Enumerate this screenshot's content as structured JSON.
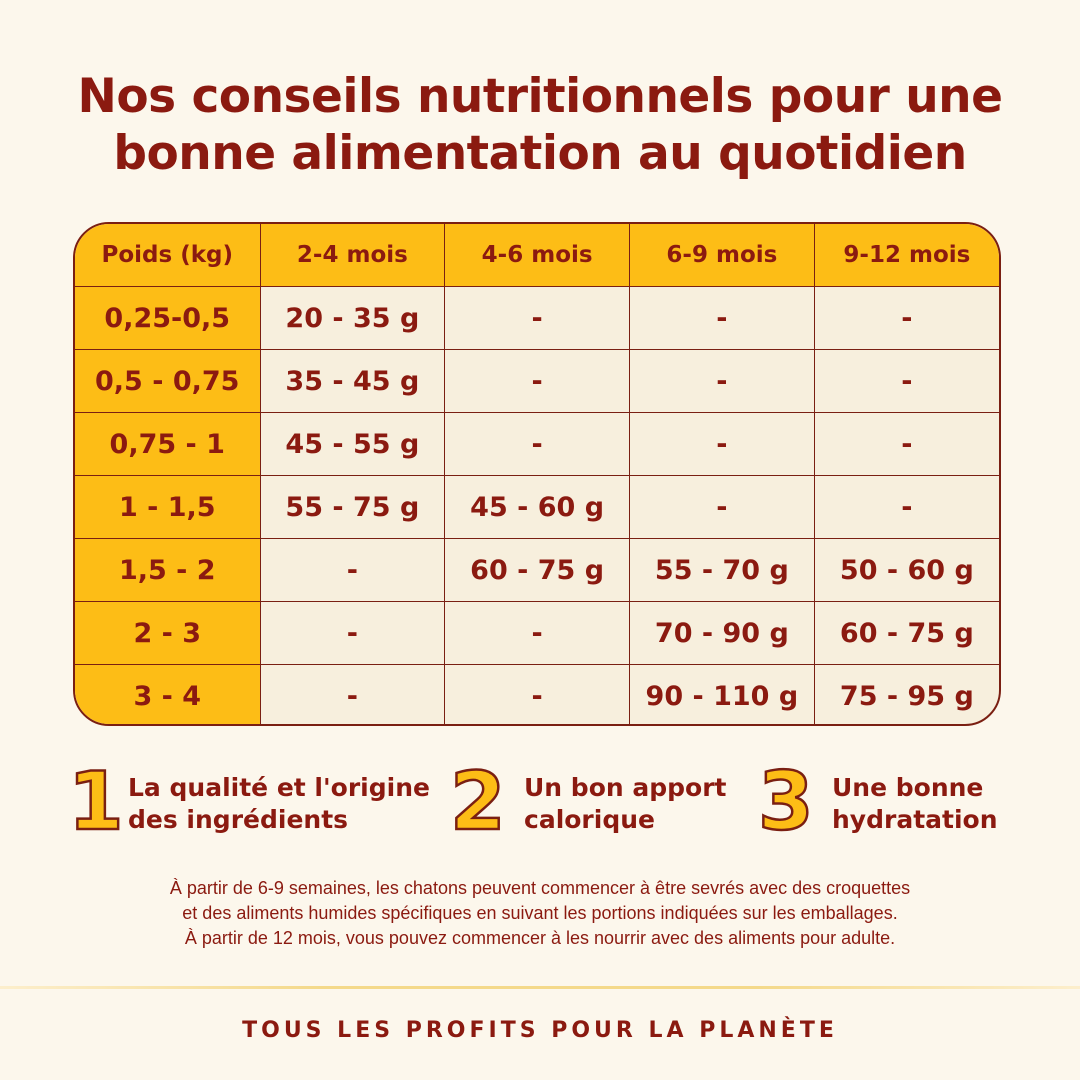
{
  "title": {
    "line1": "Nos conseils nutritionnels pour une",
    "line2": "bonne alimentation au quotidien"
  },
  "table": {
    "headers": [
      "Poids (kg)",
      "2-4 mois",
      "4-6 mois",
      "6-9 mois",
      "9-12 mois"
    ],
    "rows": [
      [
        "0,25-0,5",
        "20 - 35 g",
        "-",
        "-",
        "-"
      ],
      [
        "0,5 - 0,75",
        "35 - 45 g",
        "-",
        "-",
        "-"
      ],
      [
        "0,75 - 1",
        "45 - 55 g",
        "-",
        "-",
        "-"
      ],
      [
        "1 - 1,5",
        "55 - 75 g",
        "45 - 60 g",
        "-",
        "-"
      ],
      [
        "1,5 - 2",
        "-",
        "60 - 75 g",
        "55 - 70 g",
        "50 - 60 g"
      ],
      [
        "2 - 3",
        "-",
        "-",
        "70 - 90 g",
        "60 - 75 g"
      ],
      [
        "3 - 4",
        "-",
        "-",
        "90 - 110 g",
        "75 - 95 g"
      ]
    ]
  },
  "tips": [
    {
      "number": "1",
      "line1": "La qualité et l'origine",
      "line2": "des ingrédients"
    },
    {
      "number": "2",
      "line1": "Un bon apport",
      "line2": "calorique"
    },
    {
      "number": "3",
      "line1": "Une bonne",
      "line2": "hydratation"
    }
  ],
  "note": {
    "line1": "À partir de 6-9 semaines, les chatons peuvent commencer à être sevrés avec des croquettes",
    "line2": "et des aliments humides spécifiques en suivant les portions indiquées sur les emballages.",
    "line3": "À partir de 12 mois, vous pouvez commencer à les nourrir avec des aliments pour adulte."
  },
  "footer": "TOUS LES PROFITS POUR LA PLANÈTE",
  "colors": {
    "background": "#fcf7ec",
    "accent_yellow": "#fdbd16",
    "text_dark_red": "#8b1a10",
    "cell_cream": "#f7efdd"
  }
}
